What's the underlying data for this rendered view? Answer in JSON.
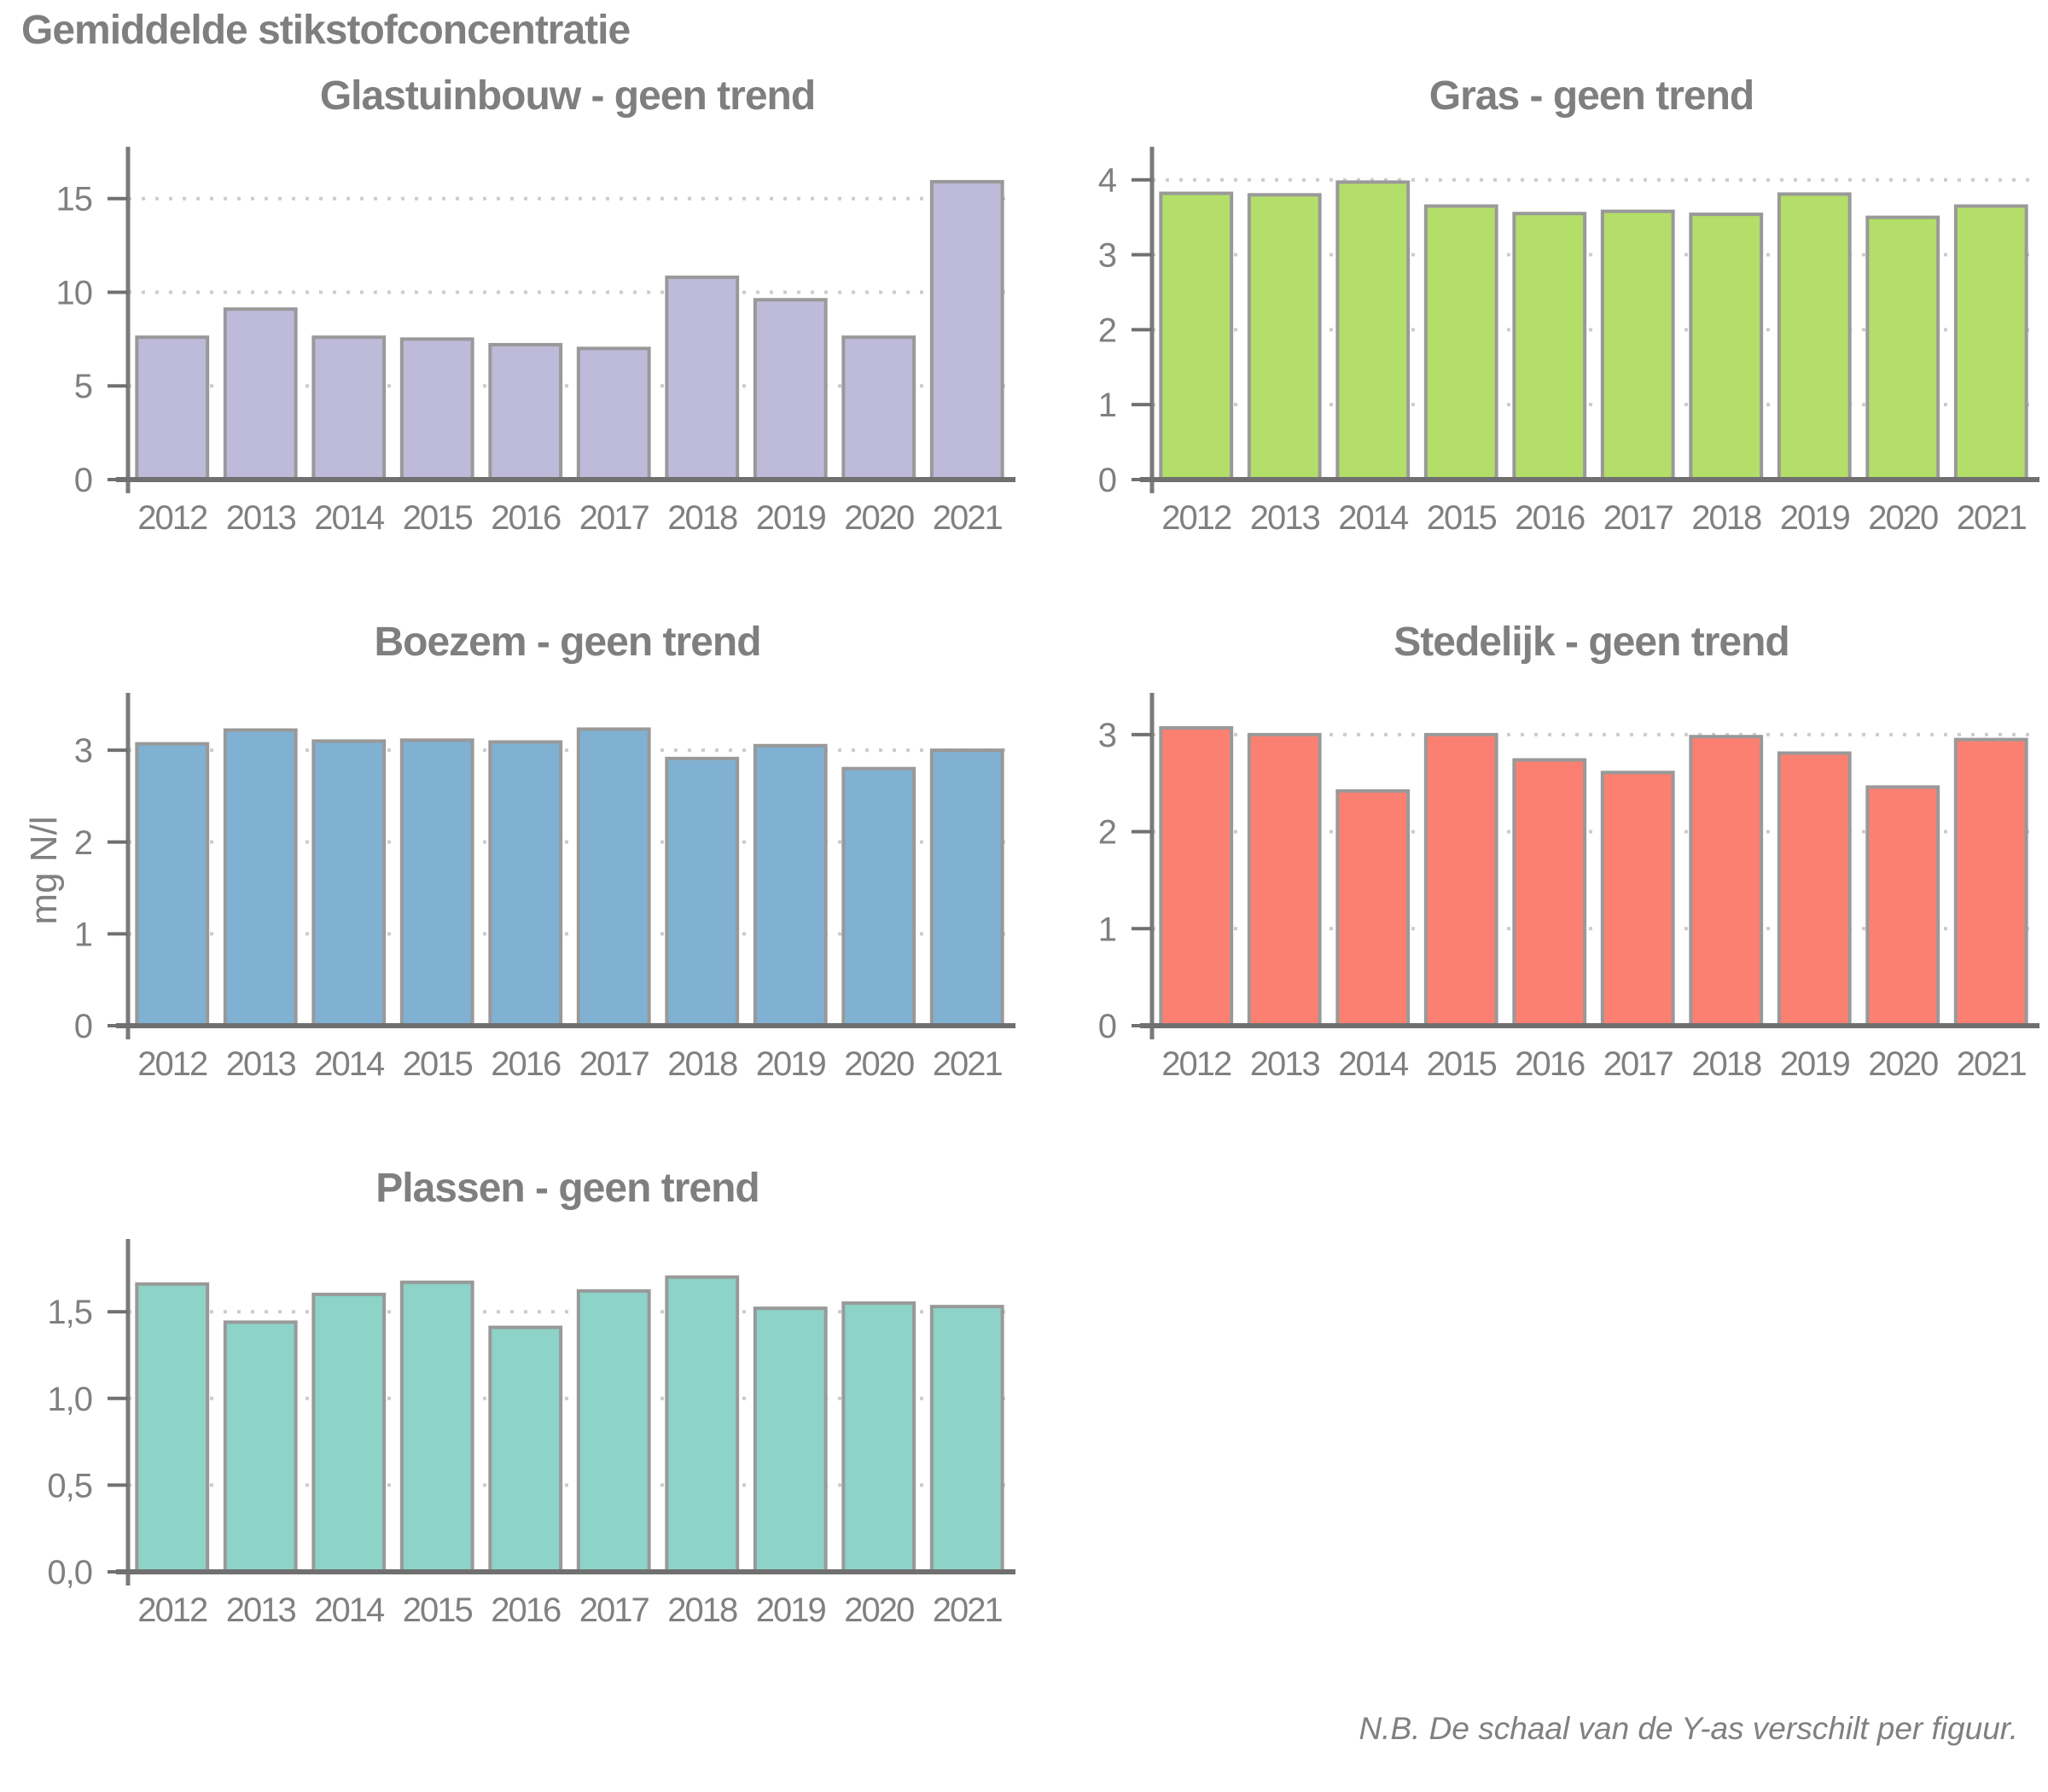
{
  "page_title": "Gemiddelde stikstofconcentratie",
  "y_axis_label": "mg N/l",
  "footnote": "N.B. De schaal van de Y-as verschilt per figuur.",
  "colors": {
    "title_text": "#7f7f7f",
    "tick_text": "#808080",
    "axis_line": "#707070",
    "gridline": "#cccccc",
    "bar_stroke": "#999999",
    "glastuinbouw_fill": "#BEBADA",
    "gras_fill": "#B3DE69",
    "boezem_fill": "#80B1D3",
    "stedelijk_fill": "#FB8072",
    "plassen_fill": "#8DD3C7"
  },
  "chart_data": [
    {
      "type": "bar",
      "title": "Glastuinbouw - geen trend",
      "categories": [
        "2012",
        "2013",
        "2014",
        "2015",
        "2016",
        "2017",
        "2018",
        "2019",
        "2020",
        "2021"
      ],
      "values": [
        7.6,
        9.1,
        7.6,
        7.5,
        7.2,
        7.0,
        10.8,
        9.6,
        7.6,
        15.9
      ],
      "ylim": [
        0,
        17.4
      ],
      "yticks": [
        {
          "value": 0,
          "label": "0"
        },
        {
          "value": 5,
          "label": "5"
        },
        {
          "value": 10,
          "label": "10"
        },
        {
          "value": 15,
          "label": "15"
        }
      ],
      "bar_color": "#BEBADA",
      "grid": "dotted-horizontal",
      "legend": "none"
    },
    {
      "type": "bar",
      "title": "Gras - geen trend",
      "categories": [
        "2012",
        "2013",
        "2014",
        "2015",
        "2016",
        "2017",
        "2018",
        "2019",
        "2020",
        "2021"
      ],
      "values": [
        3.82,
        3.8,
        3.97,
        3.65,
        3.55,
        3.58,
        3.54,
        3.81,
        3.5,
        3.65
      ],
      "ylim": [
        0,
        4.35
      ],
      "yticks": [
        {
          "value": 0,
          "label": "0"
        },
        {
          "value": 1,
          "label": "1"
        },
        {
          "value": 2,
          "label": "2"
        },
        {
          "value": 3,
          "label": "3"
        },
        {
          "value": 4,
          "label": "4"
        }
      ],
      "bar_color": "#B3DE69",
      "grid": "dotted-horizontal",
      "legend": "none"
    },
    {
      "type": "bar",
      "title": "Boezem - geen trend",
      "categories": [
        "2012",
        "2013",
        "2014",
        "2015",
        "2016",
        "2017",
        "2018",
        "2019",
        "2020",
        "2021"
      ],
      "values": [
        3.07,
        3.22,
        3.1,
        3.11,
        3.09,
        3.23,
        2.91,
        3.05,
        2.8,
        3.0
      ],
      "ylim": [
        0,
        3.55
      ],
      "yticks": [
        {
          "value": 0,
          "label": "0"
        },
        {
          "value": 1,
          "label": "1"
        },
        {
          "value": 2,
          "label": "2"
        },
        {
          "value": 3,
          "label": "3"
        }
      ],
      "bar_color": "#80B1D3",
      "grid": "dotted-horizontal",
      "legend": "none"
    },
    {
      "type": "bar",
      "title": "Stedelijk - geen trend",
      "categories": [
        "2012",
        "2013",
        "2014",
        "2015",
        "2016",
        "2017",
        "2018",
        "2019",
        "2020",
        "2021"
      ],
      "values": [
        3.07,
        3.0,
        2.42,
        3.0,
        2.74,
        2.61,
        2.98,
        2.81,
        2.46,
        2.95
      ],
      "ylim": [
        0,
        3.36
      ],
      "yticks": [
        {
          "value": 0,
          "label": "0"
        },
        {
          "value": 1,
          "label": "1"
        },
        {
          "value": 2,
          "label": "2"
        },
        {
          "value": 3,
          "label": "3"
        }
      ],
      "bar_color": "#FB8072",
      "grid": "dotted-horizontal",
      "legend": "none"
    },
    {
      "type": "bar",
      "title": "Plassen - geen trend",
      "categories": [
        "2012",
        "2013",
        "2014",
        "2015",
        "2016",
        "2017",
        "2018",
        "2019",
        "2020",
        "2021"
      ],
      "values": [
        1.66,
        1.44,
        1.6,
        1.67,
        1.41,
        1.62,
        1.7,
        1.52,
        1.55,
        1.53
      ],
      "ylim": [
        0,
        1.88
      ],
      "yticks": [
        {
          "value": 0,
          "label": "0,0"
        },
        {
          "value": 0.5,
          "label": "0,5"
        },
        {
          "value": 1,
          "label": "1,0"
        },
        {
          "value": 1.5,
          "label": "1,5"
        }
      ],
      "bar_color": "#8DD3C7",
      "grid": "dotted-horizontal",
      "legend": "none"
    }
  ]
}
